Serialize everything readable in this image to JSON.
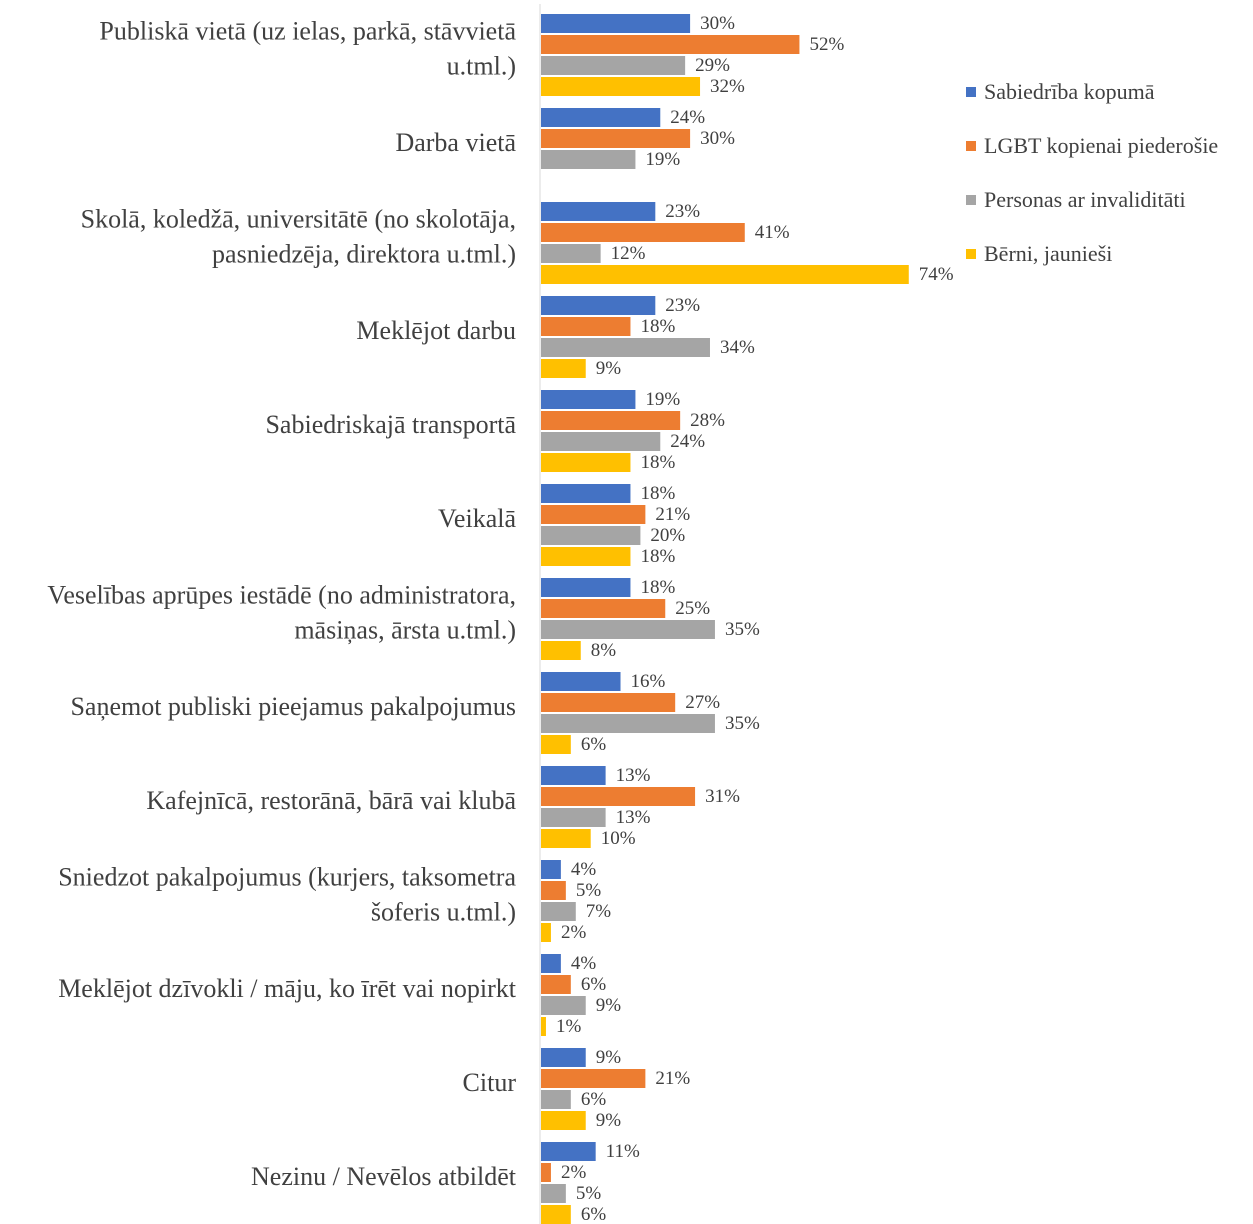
{
  "chart_data": {
    "type": "bar",
    "orientation": "horizontal",
    "categories": [
      "Publiskā vietā (uz ielas, parkā, stāvvietā u.tml.)",
      "Darba vietā",
      "Skolā, koledžā, universitātē (no skolotāja, pasniedzēja, direktora u.tml.)",
      "Meklējot darbu",
      "Sabiedriskajā transportā",
      "Veikalā",
      "Veselības aprūpes iestādē (no administratora, māsiņas, ārsta u.tml.)",
      "Saņemot publiski pieejamus pakalpojumus",
      "Kafejnīcā, restorānā, bārā vai klubā",
      "Sniedzot pakalpojumus (kurjers, taksometra šoferis u.tml.)",
      "Meklējot dzīvokli / māju, ko īrēt vai nopirkt",
      "Citur",
      "Nezinu / Nevēlos atbildēt"
    ],
    "category_lines": [
      [
        "Publiskā vietā (uz ielas, parkā, stāvvietā",
        "u.tml.)"
      ],
      [
        "Darba vietā"
      ],
      [
        "Skolā, koledžā, universitātē (no skolotāja,",
        "pasniedzēja, direktora u.tml.)"
      ],
      [
        "Meklējot darbu"
      ],
      [
        "Sabiedriskajā transportā"
      ],
      [
        "Veikalā"
      ],
      [
        "Veselības aprūpes iestādē (no administratora,",
        "māsiņas, ārsta u.tml.)"
      ],
      [
        "Saņemot publiski pieejamus pakalpojumus"
      ],
      [
        "Kafejnīcā, restorānā, bārā vai klubā"
      ],
      [
        "Sniedzot pakalpojumus (kurjers, taksometra",
        "šoferis u.tml.)"
      ],
      [
        "Meklējot dzīvokli / māju, ko īrēt vai nopirkt"
      ],
      [
        "Citur"
      ],
      [
        "Nezinu / Nevēlos atbildēt"
      ]
    ],
    "series": [
      {
        "name": "Sabiedrība kopumā",
        "color": "#4472C4",
        "values": [
          30,
          24,
          23,
          23,
          19,
          18,
          18,
          16,
          13,
          4,
          4,
          9,
          11
        ]
      },
      {
        "name": "LGBT kopienai piederošie",
        "color": "#ED7D31",
        "values": [
          52,
          30,
          41,
          18,
          28,
          21,
          25,
          27,
          31,
          5,
          6,
          21,
          2
        ]
      },
      {
        "name": "Personas ar invaliditāti",
        "color": "#A5A5A5",
        "values": [
          29,
          19,
          12,
          34,
          24,
          20,
          35,
          35,
          13,
          7,
          9,
          6,
          5
        ]
      },
      {
        "name": "Bērni, jaunieši",
        "color": "#FFC000",
        "values": [
          32,
          null,
          74,
          9,
          18,
          18,
          8,
          6,
          10,
          2,
          1,
          9,
          6
        ]
      }
    ],
    "value_suffix": "%",
    "xlim": [
      0,
      100
    ],
    "grid": false,
    "legend_position": "right"
  }
}
